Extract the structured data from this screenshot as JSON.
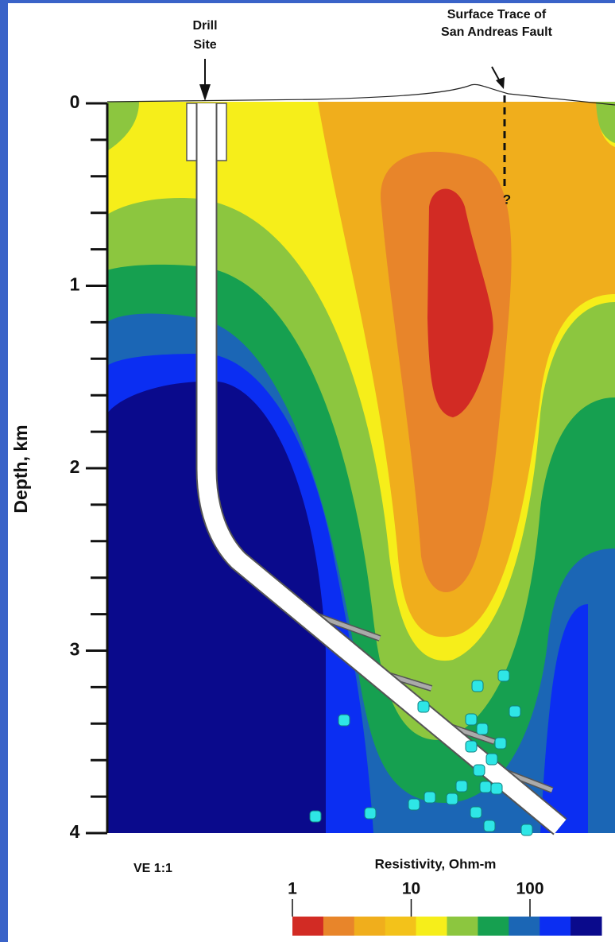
{
  "chart_data": {
    "type": "contour",
    "ylabel": "Depth, km",
    "ylim": [
      0,
      4
    ],
    "yticks": [
      0,
      1,
      2,
      3,
      4
    ],
    "yminorticks": [
      0.2,
      0.4,
      0.6,
      0.8,
      1.2,
      1.4,
      1.6,
      1.8,
      2.2,
      2.4,
      2.6,
      2.8,
      3.2,
      3.4,
      3.6,
      3.8
    ],
    "y_inverted": true,
    "drill_site": [
      "Drill",
      "Site"
    ],
    "fault_label": [
      "Surface Trace of",
      "San Andreas Fault"
    ],
    "fault_query": "?",
    "ve_label": "VE 1:1",
    "colorbar": {
      "title": "Resistivity, Ohm-m",
      "lim": [
        1,
        400
      ],
      "log": true,
      "ticks": [
        1,
        10,
        100
      ],
      "colors": [
        "#d22b24",
        "#e8852a",
        "#f0ae1c",
        "#f3c21a",
        "#f6ee1a",
        "#8cc63f",
        "#16a050",
        "#1b66b5",
        "#0b2ef2",
        "#0a0a8c"
      ]
    }
  }
}
